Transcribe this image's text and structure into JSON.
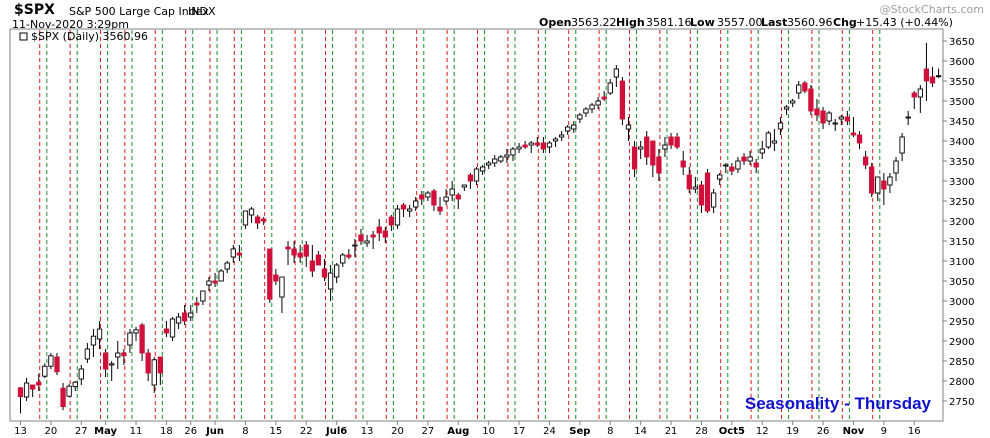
{
  "header": {
    "symbol": "$SPX",
    "name": "S&P 500 Large Cap Index",
    "exchange": "INDX",
    "date": "11-Nov-2020 3:29pm",
    "open_label": "Open",
    "open_value": "3563.22",
    "high_label": "High",
    "high_value": "3581.16",
    "low_label": "Low",
    "low_value": "3557.00",
    "last_label": "Last",
    "last_value": "3560.96",
    "chg_label": "Chg",
    "chg_value": "+15.43 (+0.44%)",
    "watermark": "@StockCharts.com"
  },
  "legend": {
    "label": "$SPX (Daily) 3560.96"
  },
  "overlay_title": "Seasonality - Thursday",
  "colors": {
    "up_candle": "#000000",
    "down_candle": "#d0103a",
    "thursday_line": "#d81b1b",
    "friday_line": "#1a8c2a",
    "overlay_title": "#1010d0",
    "last_candle": "#46c846"
  },
  "chart_data": {
    "type": "candlestick",
    "title": "Seasonality - Thursday",
    "ylim": [
      2700,
      3680
    ],
    "y_ticks": [
      2750,
      2800,
      2850,
      2900,
      2950,
      3000,
      3050,
      3100,
      3150,
      3200,
      3250,
      3300,
      3350,
      3400,
      3450,
      3500,
      3550,
      3600,
      3650
    ],
    "x_tick_labels": [
      "13",
      "20",
      "27",
      "May",
      "11",
      "18",
      "26",
      "Jun",
      "8",
      "15",
      "22",
      "Jul6",
      "13",
      "20",
      "27",
      "Aug",
      "10",
      "17",
      "24",
      "Sep",
      "8",
      "14",
      "21",
      "28",
      "Oct5",
      "12",
      "19",
      "26",
      "Nov",
      "9",
      "16"
    ],
    "x_tick_bar_index": [
      0,
      5,
      10,
      14,
      19,
      24,
      28,
      32,
      37,
      42,
      47,
      52,
      57,
      62,
      67,
      72,
      77,
      82,
      87,
      92,
      97,
      102,
      107,
      112,
      117,
      122,
      127,
      132,
      137,
      142,
      147
    ],
    "start_date": "2020-04-13",
    "thursday_bar_index": [
      3,
      8,
      13,
      17,
      22,
      27,
      31,
      35,
      40,
      45,
      50,
      55,
      60,
      65,
      70,
      75,
      80,
      85,
      90,
      95,
      100,
      105,
      110,
      115,
      120,
      125,
      130,
      135,
      140
    ],
    "friday_bar_index": [
      4,
      9,
      14,
      18,
      23,
      28,
      32,
      36,
      41,
      46,
      51,
      56,
      61,
      66,
      71,
      76,
      81,
      86,
      91,
      96,
      101,
      106,
      111,
      116,
      121,
      126,
      131,
      136,
      141
    ],
    "candles": [
      [
        2783,
        2785,
        2719,
        2761
      ],
      [
        2760,
        2808,
        2750,
        2795
      ],
      [
        2790,
        2790,
        2760,
        2780
      ],
      [
        2797,
        2818,
        2775,
        2790
      ],
      [
        2812,
        2844,
        2807,
        2837
      ],
      [
        2837,
        2870,
        2830,
        2863
      ],
      [
        2860,
        2870,
        2815,
        2823
      ],
      [
        2782,
        2795,
        2727,
        2736
      ],
      [
        2762,
        2793,
        2760,
        2787
      ],
      [
        2786,
        2800,
        2775,
        2797
      ],
      [
        2805,
        2840,
        2790,
        2830
      ],
      [
        2855,
        2895,
        2845,
        2880
      ],
      [
        2890,
        2930,
        2860,
        2912
      ],
      [
        2905,
        2950,
        2880,
        2930
      ],
      [
        2870,
        2880,
        2810,
        2830
      ],
      [
        2840,
        2850,
        2800,
        2843
      ],
      [
        2860,
        2900,
        2830,
        2870
      ],
      [
        2870,
        2880,
        2840,
        2863
      ],
      [
        2890,
        2930,
        2870,
        2920
      ],
      [
        2920,
        2935,
        2900,
        2928
      ],
      [
        2940,
        2945,
        2850,
        2870
      ],
      [
        2870,
        2880,
        2800,
        2820
      ],
      [
        2790,
        2860,
        2770,
        2853
      ],
      [
        2860,
        2860,
        2790,
        2820
      ],
      [
        2930,
        2950,
        2910,
        2920
      ],
      [
        2910,
        2960,
        2900,
        2955
      ],
      [
        2945,
        2970,
        2930,
        2960
      ],
      [
        2970,
        2990,
        2940,
        2950
      ],
      [
        2960,
        2990,
        2950,
        2970
      ],
      [
        2995,
        3010,
        2970,
        2990
      ],
      [
        3000,
        3025,
        2990,
        3025
      ],
      [
        3040,
        3060,
        3025,
        3050
      ],
      [
        3050,
        3070,
        3035,
        3045
      ],
      [
        3050,
        3080,
        3050,
        3075
      ],
      [
        3080,
        3100,
        3070,
        3095
      ],
      [
        3110,
        3140,
        3095,
        3130
      ],
      [
        3120,
        3140,
        3100,
        3115
      ],
      [
        3190,
        3225,
        3180,
        3225
      ],
      [
        3215,
        3235,
        3195,
        3230
      ],
      [
        3210,
        3215,
        3180,
        3195
      ],
      [
        3205,
        3210,
        3190,
        3200
      ],
      [
        3130,
        3130,
        2995,
        3005
      ],
      [
        3065,
        3080,
        3040,
        3050
      ],
      [
        3010,
        3055,
        2970,
        3060
      ],
      [
        3135,
        3150,
        3090,
        3130
      ],
      [
        3130,
        3150,
        3095,
        3115
      ],
      [
        3120,
        3140,
        3095,
        3110
      ],
      [
        3140,
        3150,
        3085,
        3112
      ],
      [
        3100,
        3140,
        3060,
        3075
      ],
      [
        3115,
        3125,
        3090,
        3090
      ],
      [
        3080,
        3105,
        3050,
        3060
      ],
      [
        3030,
        3090,
        3000,
        3070
      ],
      [
        3060,
        3095,
        3045,
        3090
      ],
      [
        3095,
        3120,
        3085,
        3115
      ],
      [
        3115,
        3130,
        3105,
        3110
      ],
      [
        3140,
        3155,
        3110,
        3140
      ],
      [
        3165,
        3180,
        3140,
        3150
      ],
      [
        3145,
        3165,
        3135,
        3150
      ],
      [
        3165,
        3175,
        3130,
        3160
      ],
      [
        3185,
        3205,
        3150,
        3170
      ],
      [
        3175,
        3185,
        3145,
        3160
      ],
      [
        3210,
        3215,
        3175,
        3190
      ],
      [
        3190,
        3240,
        3180,
        3230
      ],
      [
        3240,
        3245,
        3210,
        3230
      ],
      [
        3225,
        3240,
        3210,
        3230
      ],
      [
        3235,
        3260,
        3225,
        3250
      ],
      [
        3265,
        3275,
        3240,
        3255
      ],
      [
        3260,
        3275,
        3250,
        3270
      ],
      [
        3275,
        3280,
        3225,
        3240
      ],
      [
        3235,
        3260,
        3215,
        3225
      ],
      [
        3250,
        3280,
        3240,
        3260
      ],
      [
        3265,
        3300,
        3250,
        3280
      ],
      [
        3265,
        3270,
        3230,
        3255
      ],
      [
        3285,
        3290,
        3275,
        3290
      ],
      [
        3315,
        3320,
        3280,
        3300
      ],
      [
        3300,
        3335,
        3290,
        3330
      ],
      [
        3325,
        3340,
        3315,
        3335
      ],
      [
        3340,
        3350,
        3330,
        3345
      ],
      [
        3345,
        3365,
        3335,
        3355
      ],
      [
        3350,
        3365,
        3345,
        3360
      ],
      [
        3360,
        3380,
        3345,
        3365
      ],
      [
        3365,
        3385,
        3350,
        3380
      ],
      [
        3380,
        3395,
        3370,
        3385
      ],
      [
        3390,
        3400,
        3380,
        3385
      ],
      [
        3390,
        3400,
        3370,
        3395
      ],
      [
        3395,
        3410,
        3385,
        3390
      ],
      [
        3395,
        3410,
        3370,
        3380
      ],
      [
        3385,
        3400,
        3370,
        3395
      ],
      [
        3400,
        3410,
        3385,
        3405
      ],
      [
        3410,
        3425,
        3400,
        3415
      ],
      [
        3425,
        3440,
        3415,
        3435
      ],
      [
        3430,
        3450,
        3420,
        3440
      ],
      [
        3455,
        3470,
        3445,
        3465
      ],
      [
        3470,
        3485,
        3460,
        3480
      ],
      [
        3480,
        3495,
        3470,
        3490
      ],
      [
        3490,
        3510,
        3480,
        3500
      ],
      [
        3510,
        3525,
        3500,
        3505
      ],
      [
        3520,
        3555,
        3515,
        3545
      ],
      [
        3560,
        3590,
        3535,
        3580
      ],
      [
        3550,
        3560,
        3440,
        3455
      ],
      [
        3430,
        3460,
        3400,
        3440
      ],
      [
        3385,
        3400,
        3310,
        3330
      ],
      [
        3380,
        3400,
        3355,
        3385
      ],
      [
        3410,
        3425,
        3340,
        3360
      ],
      [
        3400,
        3400,
        3310,
        3340
      ],
      [
        3360,
        3380,
        3300,
        3320
      ],
      [
        3380,
        3410,
        3360,
        3390
      ],
      [
        3410,
        3420,
        3380,
        3390
      ],
      [
        3410,
        3420,
        3380,
        3385
      ],
      [
        3350,
        3375,
        3315,
        3335
      ],
      [
        3315,
        3335,
        3270,
        3280
      ],
      [
        3280,
        3310,
        3270,
        3285
      ],
      [
        3290,
        3300,
        3220,
        3240
      ],
      [
        3320,
        3330,
        3220,
        3225
      ],
      [
        3235,
        3280,
        3220,
        3270
      ],
      [
        3305,
        3320,
        3290,
        3315
      ],
      [
        3340,
        3345,
        3320,
        3340
      ],
      [
        3335,
        3345,
        3315,
        3325
      ],
      [
        3330,
        3360,
        3320,
        3350
      ],
      [
        3360,
        3370,
        3340,
        3350
      ],
      [
        3350,
        3375,
        3340,
        3360
      ],
      [
        3345,
        3355,
        3320,
        3335
      ],
      [
        3370,
        3400,
        3355,
        3380
      ],
      [
        3385,
        3425,
        3380,
        3420
      ],
      [
        3395,
        3430,
        3375,
        3400
      ],
      [
        3430,
        3460,
        3415,
        3445
      ],
      [
        3480,
        3490,
        3465,
        3485
      ],
      [
        3495,
        3505,
        3485,
        3500
      ],
      [
        3520,
        3550,
        3505,
        3540
      ],
      [
        3545,
        3550,
        3520,
        3525
      ],
      [
        3530,
        3540,
        3465,
        3475
      ],
      [
        3480,
        3505,
        3450,
        3465
      ],
      [
        3475,
        3485,
        3430,
        3445
      ],
      [
        3450,
        3475,
        3440,
        3470
      ],
      [
        3445,
        3455,
        3425,
        3445
      ],
      [
        3455,
        3465,
        3440,
        3460
      ],
      [
        3460,
        3475,
        3440,
        3450
      ],
      [
        3420,
        3460,
        3410,
        3415
      ],
      [
        3415,
        3425,
        3380,
        3395
      ],
      [
        3360,
        3375,
        3330,
        3340
      ],
      [
        3335,
        3345,
        3260,
        3270
      ],
      [
        3270,
        3310,
        3250,
        3310
      ],
      [
        3300,
        3320,
        3240,
        3280
      ],
      [
        3290,
        3320,
        3270,
        3310
      ],
      [
        3320,
        3360,
        3300,
        3350
      ],
      [
        3370,
        3420,
        3350,
        3410
      ],
      [
        3460,
        3475,
        3440,
        3460
      ],
      [
        3520,
        3525,
        3480,
        3510
      ],
      [
        3510,
        3540,
        3470,
        3530
      ],
      [
        3580,
        3645,
        3500,
        3550
      ],
      [
        3560,
        3585,
        3535,
        3545
      ],
      [
        3563.22,
        3581.16,
        3557,
        3560.96
      ]
    ]
  }
}
